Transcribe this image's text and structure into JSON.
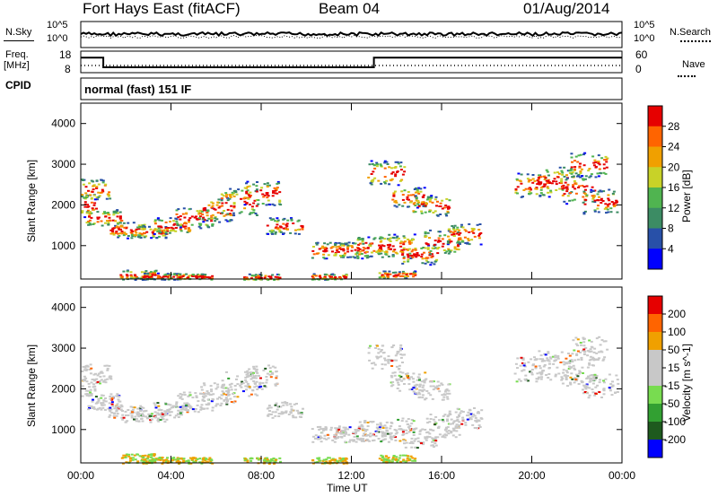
{
  "header": {
    "title": "Fort Hays East (fitACF)",
    "beam": "Beam 04",
    "date": "01/Aug/2014"
  },
  "noise_panel": {
    "left_label": "N.Sky",
    "right_label": "N.Search",
    "left_ticks": [
      "10^5",
      "10^0"
    ],
    "right_ticks": [
      "10^5",
      "10^0"
    ]
  },
  "freq_panel": {
    "left_label_line1": "Freq.",
    "left_label_line2": "[MHz]",
    "right_label": "Nave",
    "left_ticks": [
      "18",
      "8"
    ],
    "right_ticks": [
      "60",
      "0"
    ],
    "cpid_label": "CPID",
    "cpid_text": "normal (fast) 151 IF"
  },
  "colors": {
    "power_scale": [
      "#0000ff",
      "#2850a8",
      "#3c8c64",
      "#50b450",
      "#c8d228",
      "#f0a000",
      "#ff6400",
      "#e60000"
    ],
    "velocity_scale": [
      "#0000ff",
      "#1e5a1e",
      "#32a032",
      "#78dc50",
      "#c8c8c8",
      "#c8c8c8",
      "#f0a000",
      "#ff6400",
      "#e60000"
    ],
    "ground_scatter": "#c8c8c8"
  },
  "chart_data": [
    {
      "type": "heatmap",
      "title": "Power",
      "xlabel": "",
      "ylabel": "Slant Range [km]",
      "x_ticks": [
        "00:00",
        "04:00",
        "08:00",
        "12:00",
        "16:00",
        "20:00",
        "00:00"
      ],
      "y_ticks": [
        "1000",
        "2000",
        "3000",
        "4000"
      ],
      "xlim": [
        0,
        24
      ],
      "ylim": [
        180,
        4500
      ],
      "colorbar_label": "Power [dB]",
      "colorbar_ticks": [
        "4",
        "8",
        "12",
        "16",
        "20",
        "24",
        "28"
      ],
      "colorbar_range": [
        0,
        30
      ]
    },
    {
      "type": "heatmap",
      "title": "Velocity",
      "xlabel": "Time UT",
      "ylabel": "Slant Range [km]",
      "x_ticks": [
        "00:00",
        "04:00",
        "08:00",
        "12:00",
        "16:00",
        "20:00",
        "00:00"
      ],
      "y_ticks": [
        "1000",
        "2000",
        "3000",
        "4000"
      ],
      "xlim": [
        0,
        24
      ],
      "ylim": [
        180,
        4500
      ],
      "colorbar_label": "Velocity [m s^-1]",
      "colorbar_ticks": [
        "200",
        "100",
        "50",
        "15",
        "-15",
        "-50",
        "-100",
        "-200"
      ],
      "colorbar_range": [
        -250,
        250
      ]
    },
    {
      "type": "line",
      "title": "",
      "series": [
        {
          "name": "Freq.",
          "x": [
            0,
            1.0,
            1.0,
            13.0,
            13.0,
            24
          ],
          "y": [
            15.0,
            15.0,
            10.5,
            10.5,
            15.0,
            15.0
          ]
        }
      ],
      "ylim": [
        8,
        18
      ]
    }
  ]
}
